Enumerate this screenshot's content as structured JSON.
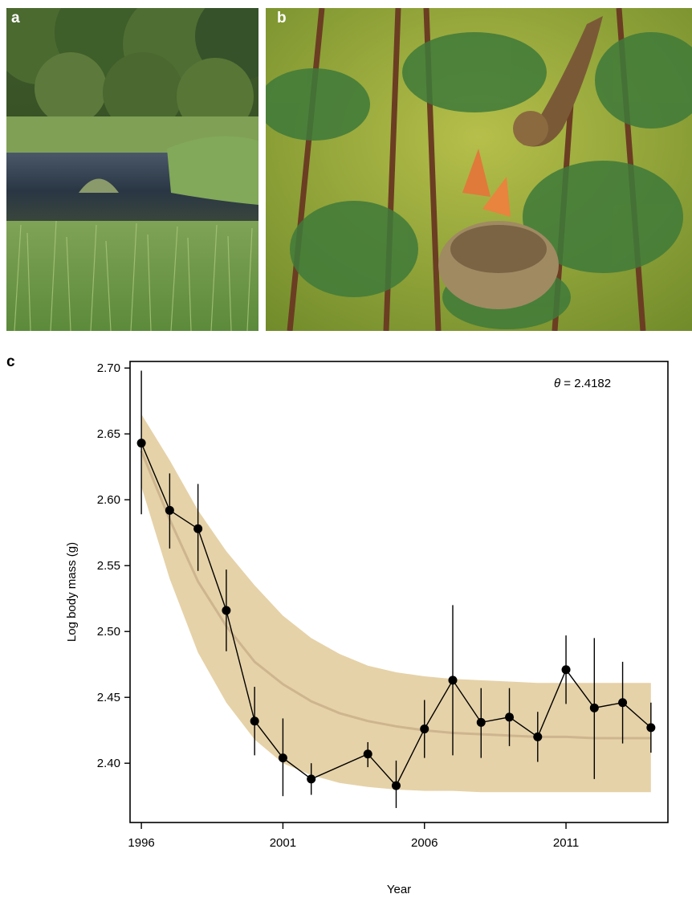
{
  "panels": {
    "a": "a",
    "b": "b",
    "c": "c"
  },
  "images": [
    {
      "panel": "a",
      "subject": "marsh pond with reeds and trees"
    },
    {
      "panel": "b",
      "subject": "bird feeding nestlings in nest among conifer branches"
    }
  ],
  "colors": {
    "band": "#e6d2a8",
    "fit_line": "#cdb58f",
    "points": "#000000",
    "frame": "#000000"
  },
  "chart_data": {
    "type": "scatter",
    "xlabel": "Year",
    "ylabel": "Log body mass (g)",
    "annotation": {
      "symbol": "θ",
      "text": " = 2.4182"
    },
    "xlim": [
      1995.6,
      2014.6
    ],
    "ylim": [
      2.355,
      2.705
    ],
    "xticks": [
      1996,
      2001,
      2006,
      2011
    ],
    "yticks": [
      2.4,
      2.45,
      2.5,
      2.55,
      2.6,
      2.65,
      2.7
    ],
    "ytick_labels": [
      "2.40",
      "2.45",
      "2.50",
      "2.55",
      "2.60",
      "2.65",
      "2.70"
    ],
    "series": [
      {
        "x": [
          1996,
          1997,
          1998,
          1999,
          2000,
          2001,
          2002,
          2004,
          2005,
          2006,
          2007,
          2008,
          2009,
          2010,
          2011,
          2012,
          2013,
          2014
        ],
        "y": [
          2.643,
          2.592,
          2.578,
          2.516,
          2.432,
          2.404,
          2.388,
          2.407,
          2.383,
          2.426,
          2.463,
          2.431,
          2.435,
          2.42,
          2.471,
          2.442,
          2.446,
          2.427
        ],
        "err_low": [
          2.589,
          2.563,
          2.546,
          2.485,
          2.406,
          2.375,
          2.376,
          2.397,
          2.366,
          2.404,
          2.406,
          2.404,
          2.413,
          2.401,
          2.445,
          2.388,
          2.415,
          2.408
        ],
        "err_high": [
          2.698,
          2.62,
          2.612,
          2.547,
          2.458,
          2.434,
          2.4,
          2.416,
          2.402,
          2.448,
          2.52,
          2.457,
          2.457,
          2.439,
          2.497,
          2.495,
          2.477,
          2.446
        ]
      }
    ],
    "fit": {
      "x": [
        1996,
        1997,
        1998,
        1999,
        2000,
        2001,
        2002,
        2003,
        2004,
        2005,
        2006,
        2007,
        2008,
        2009,
        2010,
        2011,
        2012,
        2013,
        2014
      ],
      "y": [
        2.637,
        2.585,
        2.538,
        2.504,
        2.477,
        2.46,
        2.447,
        2.438,
        2.432,
        2.428,
        2.425,
        2.423,
        2.422,
        2.421,
        2.42,
        2.42,
        2.419,
        2.419,
        2.419
      ],
      "lower": [
        2.61,
        2.54,
        2.484,
        2.446,
        2.418,
        2.4,
        2.391,
        2.385,
        2.382,
        2.38,
        2.379,
        2.379,
        2.378,
        2.378,
        2.378,
        2.378,
        2.378,
        2.378,
        2.378
      ],
      "upper": [
        2.665,
        2.63,
        2.592,
        2.561,
        2.535,
        2.512,
        2.495,
        2.483,
        2.474,
        2.469,
        2.466,
        2.464,
        2.463,
        2.462,
        2.461,
        2.461,
        2.461,
        2.461,
        2.461
      ]
    }
  }
}
